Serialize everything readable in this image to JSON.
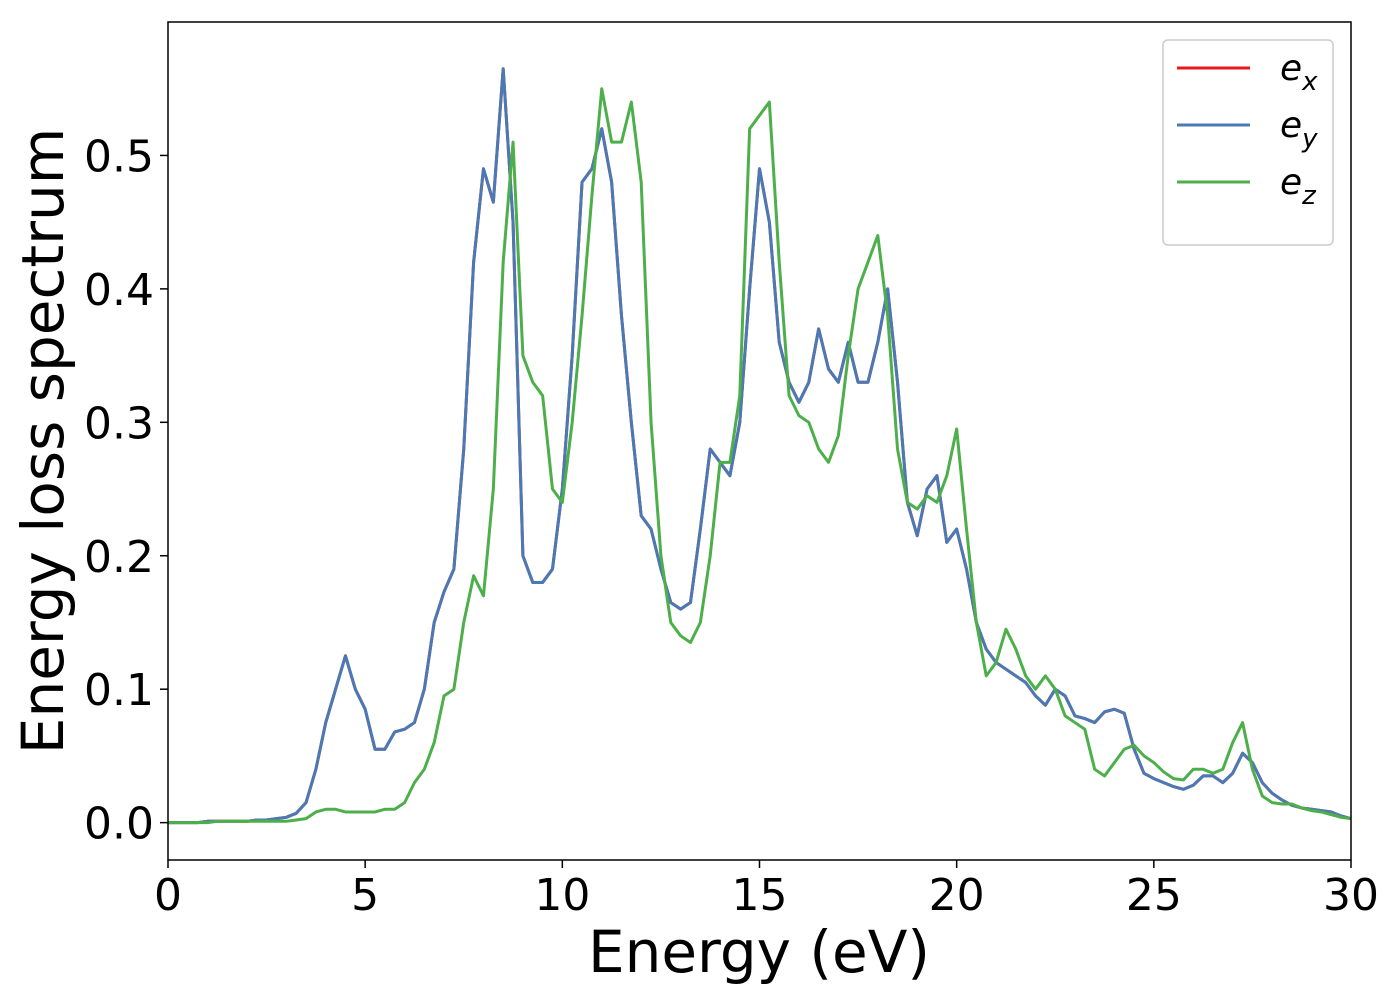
{
  "chart_data": {
    "type": "line",
    "xlabel": "Energy (eV)",
    "ylabel": "Energy loss spectrum",
    "x": [
      0,
      0.25,
      0.5,
      0.75,
      1,
      1.25,
      1.5,
      1.75,
      2,
      2.25,
      2.5,
      2.75,
      3,
      3.25,
      3.5,
      3.75,
      4,
      4.25,
      4.5,
      4.75,
      5,
      5.25,
      5.5,
      5.75,
      6,
      6.25,
      6.5,
      6.75,
      7,
      7.25,
      7.5,
      7.75,
      8,
      8.25,
      8.5,
      8.75,
      9,
      9.25,
      9.5,
      9.75,
      10,
      10.25,
      10.5,
      10.75,
      11,
      11.25,
      11.5,
      11.75,
      12,
      12.25,
      12.5,
      12.75,
      13,
      13.25,
      13.5,
      13.75,
      14,
      14.25,
      14.5,
      14.75,
      15,
      15.25,
      15.5,
      15.75,
      16,
      16.25,
      16.5,
      16.75,
      17,
      17.25,
      17.5,
      17.75,
      18,
      18.25,
      18.5,
      18.75,
      19,
      19.25,
      19.5,
      19.75,
      20,
      20.25,
      20.5,
      20.75,
      21,
      21.25,
      21.5,
      21.75,
      22,
      22.25,
      22.5,
      22.75,
      23,
      23.25,
      23.5,
      23.75,
      24,
      24.25,
      24.5,
      24.75,
      25,
      25.25,
      25.5,
      25.75,
      26,
      26.25,
      26.5,
      26.75,
      27,
      27.25,
      27.5,
      27.75,
      28,
      28.25,
      28.5,
      28.75,
      29,
      29.25,
      29.5,
      29.75,
      30
    ],
    "series": [
      {
        "name": "ex",
        "color": "#e41a1c",
        "values": [
          0,
          0,
          0,
          0,
          0.001,
          0.001,
          0.001,
          0.001,
          0.001,
          0.002,
          0.002,
          0.003,
          0.004,
          0.007,
          0.015,
          0.04,
          0.075,
          0.1,
          0.125,
          0.1,
          0.085,
          0.055,
          0.055,
          0.068,
          0.07,
          0.075,
          0.1,
          0.15,
          0.173,
          0.19,
          0.28,
          0.42,
          0.49,
          0.465,
          0.565,
          0.45,
          0.2,
          0.18,
          0.18,
          0.19,
          0.25,
          0.35,
          0.48,
          0.49,
          0.52,
          0.48,
          0.38,
          0.3,
          0.23,
          0.22,
          0.19,
          0.165,
          0.16,
          0.165,
          0.22,
          0.28,
          0.27,
          0.26,
          0.3,
          0.4,
          0.49,
          0.45,
          0.36,
          0.33,
          0.315,
          0.33,
          0.37,
          0.34,
          0.33,
          0.36,
          0.33,
          0.33,
          0.36,
          0.4,
          0.33,
          0.24,
          0.215,
          0.25,
          0.26,
          0.21,
          0.22,
          0.19,
          0.15,
          0.13,
          0.12,
          0.115,
          0.11,
          0.105,
          0.095,
          0.088,
          0.1,
          0.095,
          0.08,
          0.078,
          0.075,
          0.083,
          0.085,
          0.082,
          0.055,
          0.037,
          0.033,
          0.03,
          0.027,
          0.025,
          0.028,
          0.035,
          0.035,
          0.03,
          0.037,
          0.052,
          0.045,
          0.03,
          0.022,
          0.017,
          0.013,
          0.011,
          0.01,
          0.009,
          0.008,
          0.005,
          0.003
        ]
      },
      {
        "name": "ey",
        "color": "#4a7ab5",
        "values": [
          0,
          0,
          0,
          0,
          0.001,
          0.001,
          0.001,
          0.001,
          0.001,
          0.002,
          0.002,
          0.003,
          0.004,
          0.007,
          0.015,
          0.04,
          0.075,
          0.1,
          0.125,
          0.1,
          0.085,
          0.055,
          0.055,
          0.068,
          0.07,
          0.075,
          0.1,
          0.15,
          0.173,
          0.19,
          0.28,
          0.42,
          0.49,
          0.465,
          0.565,
          0.45,
          0.2,
          0.18,
          0.18,
          0.19,
          0.25,
          0.35,
          0.48,
          0.49,
          0.52,
          0.48,
          0.38,
          0.3,
          0.23,
          0.22,
          0.19,
          0.165,
          0.16,
          0.165,
          0.22,
          0.28,
          0.27,
          0.26,
          0.3,
          0.4,
          0.49,
          0.45,
          0.36,
          0.33,
          0.315,
          0.33,
          0.37,
          0.34,
          0.33,
          0.36,
          0.33,
          0.33,
          0.36,
          0.4,
          0.33,
          0.24,
          0.215,
          0.25,
          0.26,
          0.21,
          0.22,
          0.19,
          0.15,
          0.13,
          0.12,
          0.115,
          0.11,
          0.105,
          0.095,
          0.088,
          0.1,
          0.095,
          0.08,
          0.078,
          0.075,
          0.083,
          0.085,
          0.082,
          0.055,
          0.037,
          0.033,
          0.03,
          0.027,
          0.025,
          0.028,
          0.035,
          0.035,
          0.03,
          0.037,
          0.052,
          0.045,
          0.03,
          0.022,
          0.017,
          0.013,
          0.011,
          0.01,
          0.009,
          0.008,
          0.005,
          0.003
        ]
      },
      {
        "name": "ez",
        "color": "#4daf4a",
        "values": [
          0,
          0,
          0,
          0,
          0,
          0.001,
          0.001,
          0.001,
          0.001,
          0.001,
          0.001,
          0.001,
          0.001,
          0.002,
          0.003,
          0.008,
          0.01,
          0.01,
          0.008,
          0.008,
          0.008,
          0.008,
          0.01,
          0.01,
          0.015,
          0.03,
          0.04,
          0.06,
          0.095,
          0.1,
          0.15,
          0.185,
          0.17,
          0.25,
          0.42,
          0.51,
          0.35,
          0.33,
          0.32,
          0.25,
          0.24,
          0.3,
          0.38,
          0.47,
          0.55,
          0.51,
          0.51,
          0.54,
          0.48,
          0.3,
          0.2,
          0.15,
          0.14,
          0.135,
          0.15,
          0.2,
          0.27,
          0.27,
          0.32,
          0.52,
          0.53,
          0.54,
          0.42,
          0.32,
          0.305,
          0.3,
          0.28,
          0.27,
          0.29,
          0.35,
          0.4,
          0.42,
          0.44,
          0.38,
          0.28,
          0.24,
          0.235,
          0.245,
          0.24,
          0.26,
          0.295,
          0.22,
          0.15,
          0.11,
          0.12,
          0.145,
          0.13,
          0.11,
          0.1,
          0.11,
          0.1,
          0.08,
          0.075,
          0.07,
          0.04,
          0.035,
          0.045,
          0.055,
          0.058,
          0.05,
          0.045,
          0.038,
          0.033,
          0.032,
          0.04,
          0.04,
          0.037,
          0.04,
          0.06,
          0.075,
          0.04,
          0.02,
          0.015,
          0.014,
          0.014,
          0.011,
          0.009,
          0.008,
          0.006,
          0.004,
          0.003
        ]
      }
    ],
    "xlim": [
      0,
      30
    ],
    "xticks": [
      0,
      5,
      10,
      15,
      20,
      25,
      30
    ],
    "ylim": [
      -0.028,
      0.6
    ],
    "yticks": [
      {
        "value": 0,
        "label": "0.0"
      },
      0.1,
      0.2,
      0.3,
      0.4,
      0.5
    ],
    "grid": false,
    "legend": "upper right"
  }
}
